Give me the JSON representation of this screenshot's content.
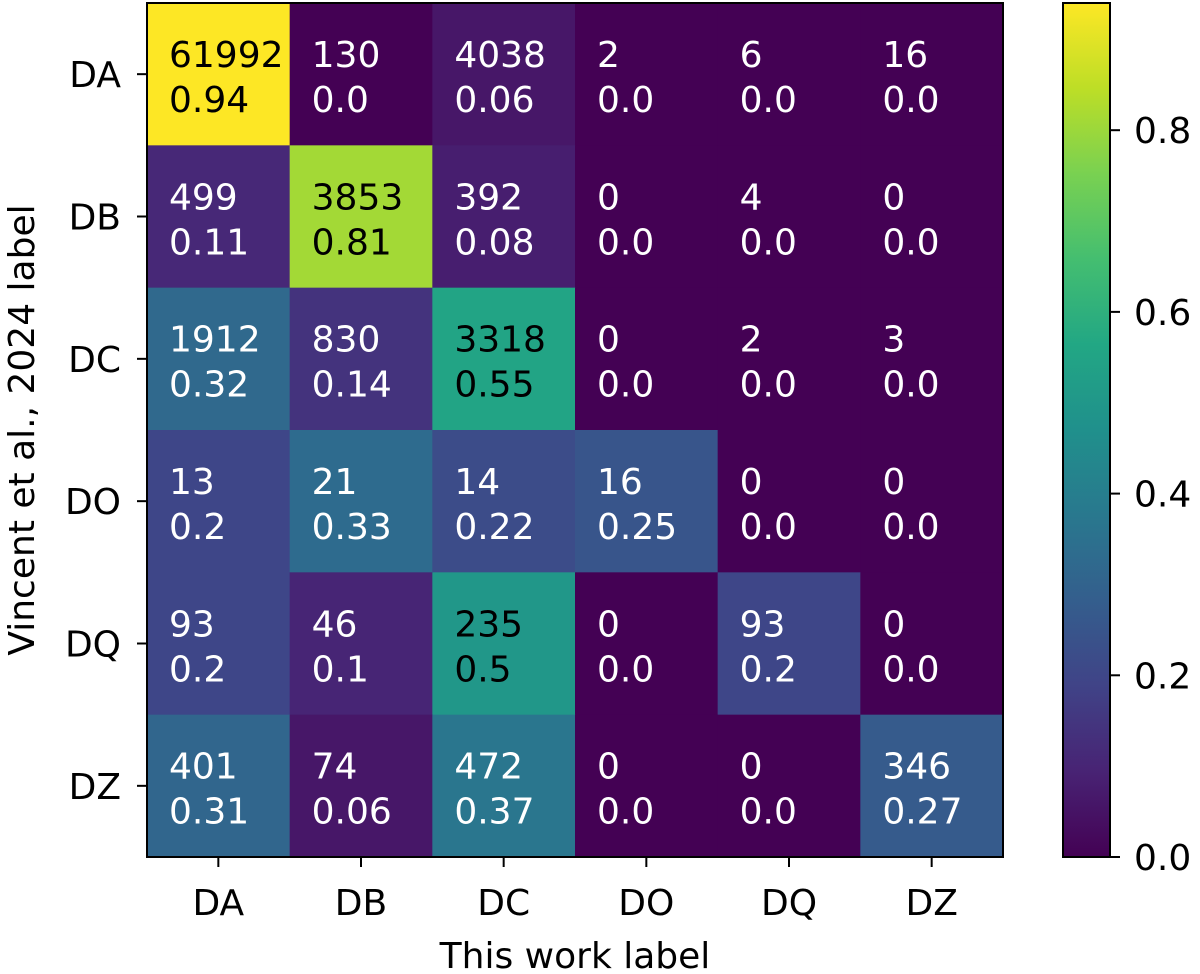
{
  "chart_data": {
    "type": "heatmap",
    "title": "",
    "xlabel": "This work label",
    "ylabel": "Vincent et al., 2024 label",
    "x_categories": [
      "DA",
      "DB",
      "DC",
      "DO",
      "DQ",
      "DZ"
    ],
    "y_categories": [
      "DA",
      "DB",
      "DC",
      "DO",
      "DQ",
      "DZ"
    ],
    "counts": [
      [
        61992,
        130,
        4038,
        2,
        6,
        16
      ],
      [
        499,
        3853,
        392,
        0,
        4,
        0
      ],
      [
        1912,
        830,
        3318,
        0,
        2,
        3
      ],
      [
        13,
        21,
        14,
        16,
        0,
        0
      ],
      [
        93,
        46,
        235,
        0,
        93,
        0
      ],
      [
        401,
        74,
        472,
        0,
        0,
        346
      ]
    ],
    "fractions": [
      [
        "0.94",
        "0.0",
        "0.06",
        "0.0",
        "0.0",
        "0.0"
      ],
      [
        "0.11",
        "0.81",
        "0.08",
        "0.0",
        "0.0",
        "0.0"
      ],
      [
        "0.32",
        "0.14",
        "0.55",
        "0.0",
        "0.0",
        "0.0"
      ],
      [
        "0.2",
        "0.33",
        "0.22",
        "0.25",
        "0.0",
        "0.0"
      ],
      [
        "0.2",
        "0.1",
        "0.5",
        "0.0",
        "0.2",
        "0.0"
      ],
      [
        "0.31",
        "0.06",
        "0.37",
        "0.0",
        "0.0",
        "0.27"
      ]
    ],
    "colorbar": {
      "colormap": "viridis",
      "range": [
        0.0,
        0.94
      ],
      "ticks": [
        "0.0",
        "0.2",
        "0.4",
        "0.6",
        "0.8"
      ]
    }
  }
}
